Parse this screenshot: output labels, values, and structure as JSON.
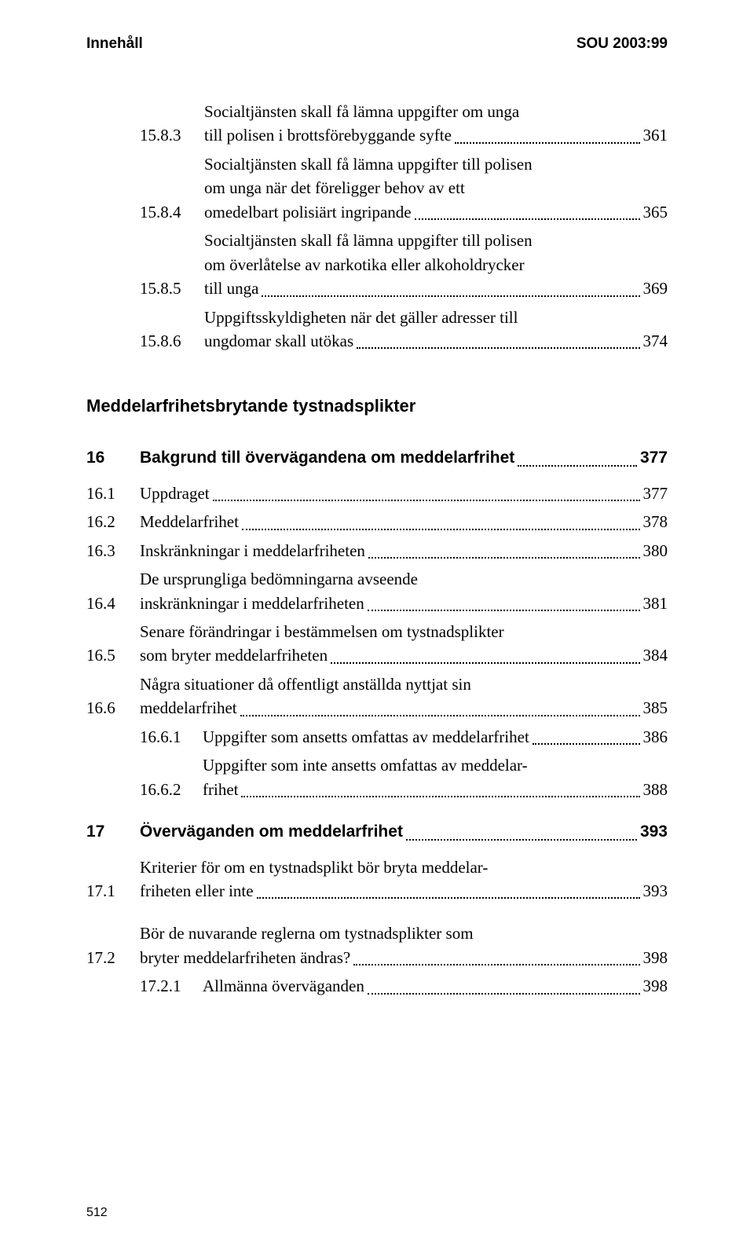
{
  "header": {
    "left": "Innehåll",
    "right": "SOU 2003:99"
  },
  "toc1": [
    {
      "num": "15.8.3",
      "lines": [
        "Socialtjänsten skall få lämna uppgifter om unga",
        "till polisen i brottsförebyggande syfte"
      ],
      "page": "361"
    },
    {
      "num": "15.8.4",
      "lines": [
        "Socialtjänsten skall få lämna uppgifter till polisen",
        "om unga när det föreligger behov av ett",
        "omedelbart polisiärt ingripande"
      ],
      "page": "365"
    },
    {
      "num": "15.8.5",
      "lines": [
        "Socialtjänsten skall få lämna uppgifter till polisen",
        "om överlåtelse av narkotika eller alkoholdrycker",
        "till unga"
      ],
      "page": "369"
    },
    {
      "num": "15.8.6",
      "lines": [
        "Uppgiftsskyldigheten när det gäller adresser till",
        "ungdomar skall utökas"
      ],
      "page": "374"
    }
  ],
  "section_title": "Meddelarfrihetsbrytande tystnadsplikter",
  "toc2": [
    {
      "num": "16",
      "lines": [
        "Bakgrund till övervägandena om meddelarfrihet"
      ],
      "page": "377",
      "bold": true,
      "indent": 1
    },
    {
      "num": "16.1",
      "lines": [
        "Uppdraget"
      ],
      "page": "377",
      "indent": 1
    },
    {
      "num": "16.2",
      "lines": [
        "Meddelarfrihet"
      ],
      "page": "378",
      "indent": 1
    },
    {
      "num": "16.3",
      "lines": [
        "Inskränkningar i meddelarfriheten"
      ],
      "page": "380",
      "indent": 1
    },
    {
      "num": "16.4",
      "lines": [
        "De ursprungliga bedömningarna avseende",
        "inskränkningar i meddelarfriheten"
      ],
      "page": "381",
      "indent": 1
    },
    {
      "num": "16.5",
      "lines": [
        "Senare förändringar i bestämmelsen om tystnadsplikter",
        "som bryter meddelarfriheten"
      ],
      "page": "384",
      "indent": 1
    },
    {
      "num": "16.6",
      "lines": [
        "Några situationer då offentligt anställda nyttjat sin",
        "meddelarfrihet"
      ],
      "page": "385",
      "indent": 1
    },
    {
      "num": "16.6.1",
      "lines": [
        "Uppgifter som ansetts omfattas av meddelarfrihet"
      ],
      "page": "386",
      "indent": 2
    },
    {
      "num": "16.6.2",
      "lines": [
        "Uppgifter som inte ansetts omfattas av meddelar-",
        "frihet"
      ],
      "page": "388",
      "indent": 2
    },
    {
      "num": "17",
      "lines": [
        "Överväganden om meddelarfrihet"
      ],
      "page": "393",
      "bold": true,
      "indent": 1,
      "gap": true
    },
    {
      "num": "17.1",
      "lines": [
        "Kriterier för om en tystnadsplikt bör bryta meddelar-",
        "friheten eller inte"
      ],
      "page": "393",
      "indent": 1
    },
    {
      "num": "17.2",
      "lines": [
        "Bör de nuvarande reglerna om tystnadsplikter som",
        "bryter meddelarfriheten ändras?"
      ],
      "page": "398",
      "indent": 1,
      "gap": true
    },
    {
      "num": "17.2.1",
      "lines": [
        "Allmänna överväganden"
      ],
      "page": "398",
      "indent": 2
    }
  ],
  "footer": "512"
}
